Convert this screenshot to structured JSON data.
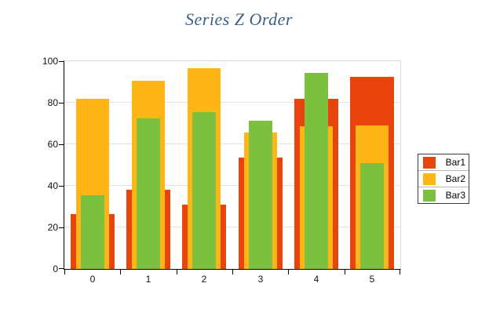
{
  "title": "Series Z Order",
  "chart_data": {
    "type": "bar",
    "title": "Series Z Order",
    "categories": [
      "0",
      "1",
      "2",
      "3",
      "4",
      "5"
    ],
    "series": [
      {
        "name": "Bar1",
        "color": "#e9430e",
        "values": [
          26.5,
          38,
          31,
          53.5,
          82,
          92.5
        ]
      },
      {
        "name": "Bar2",
        "color": "#fdb616",
        "values": [
          82,
          90.5,
          96.5,
          65.5,
          68.5,
          69
        ]
      },
      {
        "name": "Bar3",
        "color": "#7dbf3e",
        "values": [
          35.5,
          72.5,
          75.5,
          71.5,
          94.5,
          51
        ]
      }
    ],
    "xlabel": "",
    "ylabel": "",
    "ylim": [
      0,
      100
    ],
    "yticks": [
      0,
      20,
      40,
      60,
      80,
      100
    ],
    "grid": true,
    "legend_position": "right-outside",
    "layout_hint": "overlaid bars, not stacked: series drawn back-to-front Bar1 (widest), Bar2, Bar3 (narrowest), all bottom-aligned at zero"
  }
}
